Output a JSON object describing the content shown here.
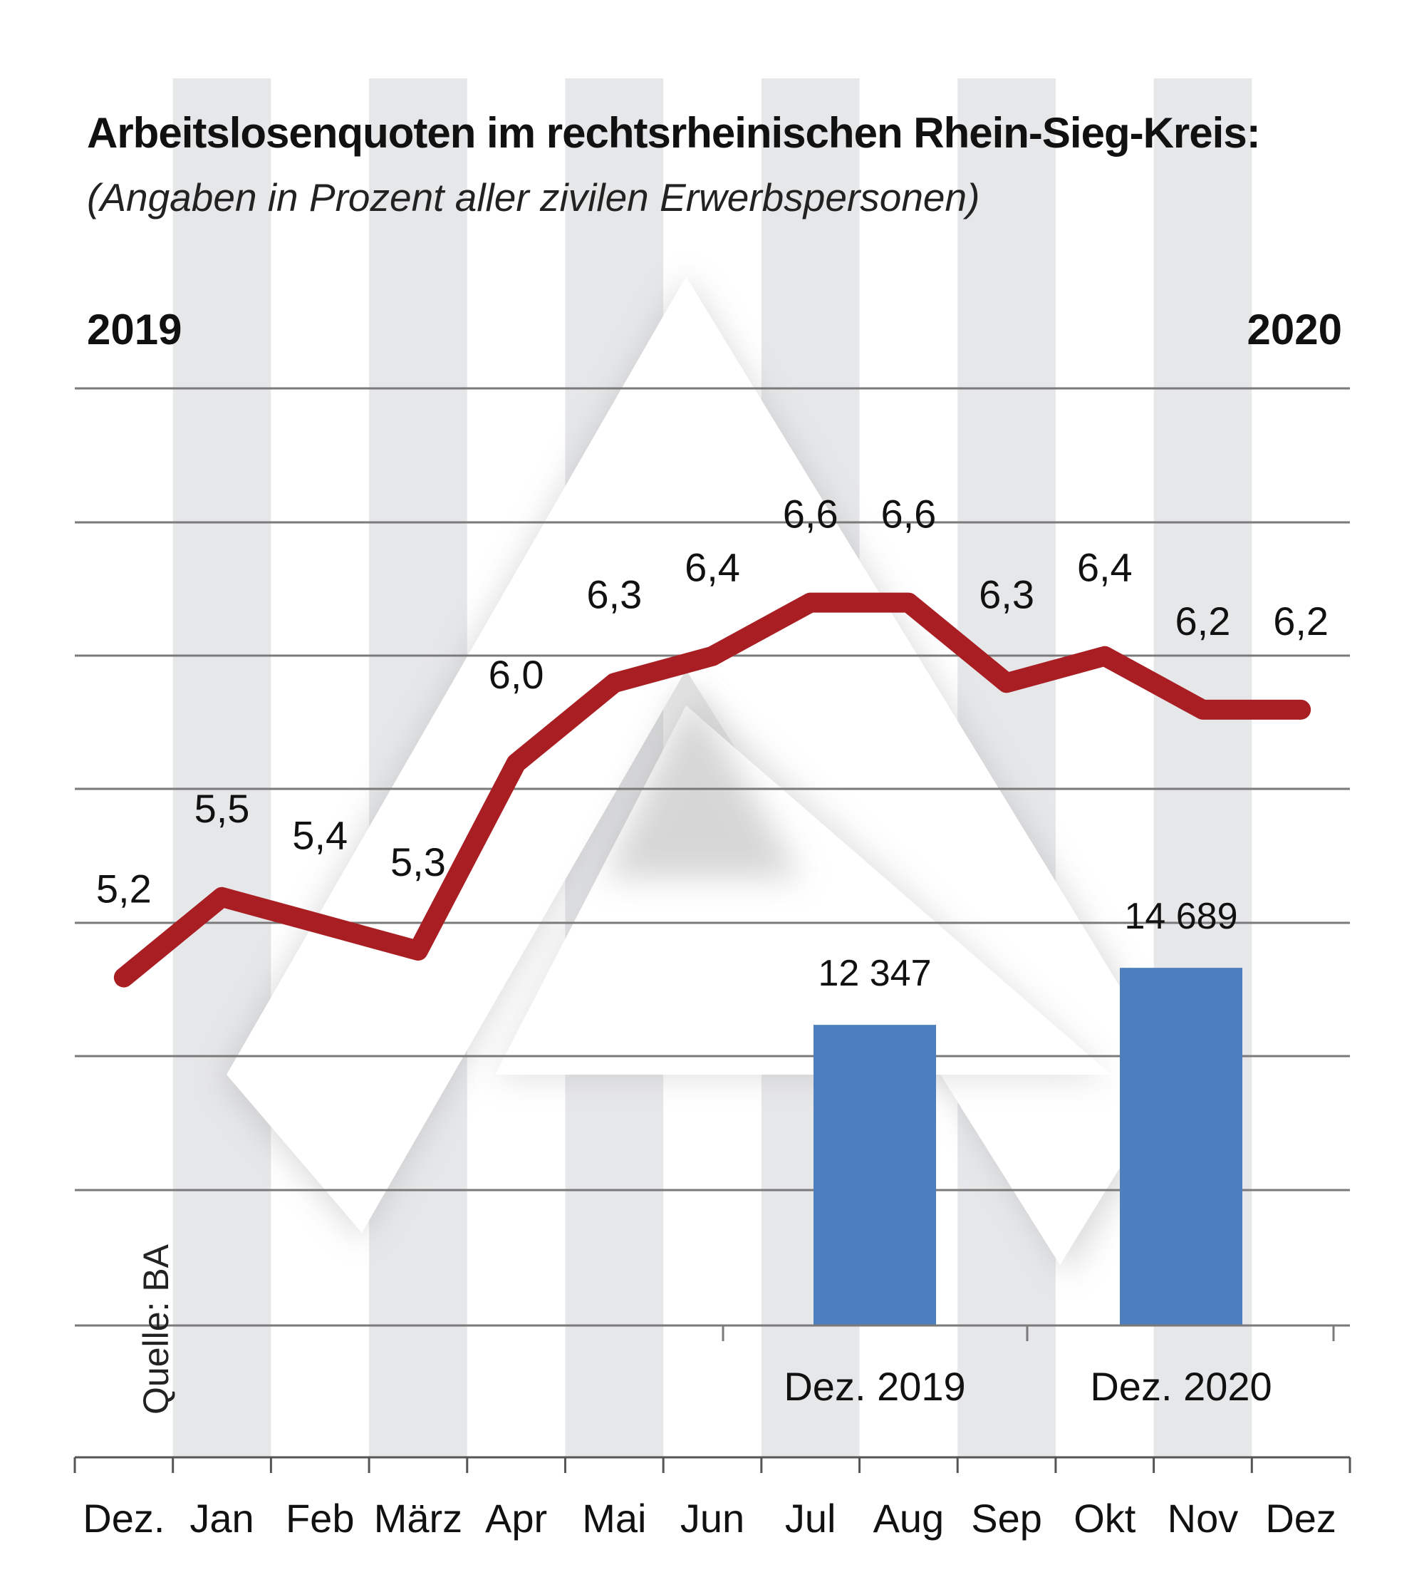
{
  "title": "Arbeitslosenquoten im rechtsrheinischen Rhein-Sieg-Kreis:",
  "subtitle": "(Angaben in Prozent aller zivilen Erwerbspersonen)",
  "year_start": "2019",
  "year_end": "2020",
  "source": "Quelle: BA",
  "colors": {
    "line": "#a91e23",
    "bars": "#4d7fbf",
    "stripes": "#e6e7e9",
    "grid": "#7a7a7a"
  },
  "chart_data": [
    {
      "type": "line",
      "categories": [
        "Dez.",
        "Jan",
        "Feb",
        "März",
        "Apr",
        "Mai",
        "Jun",
        "Jul",
        "Aug",
        "Sep",
        "Okt",
        "Nov",
        "Dez"
      ],
      "values": [
        5.2,
        5.5,
        5.4,
        5.3,
        6.0,
        6.3,
        6.4,
        6.6,
        6.6,
        6.3,
        6.4,
        6.2,
        6.2
      ],
      "labels": [
        "5,2",
        "5,5",
        "5,4",
        "5,3",
        "6,0",
        "6,3",
        "6,4",
        "6,6",
        "6,6",
        "6,3",
        "6,4",
        "6,2",
        "6,2"
      ],
      "ylim": [
        3.9,
        7.4
      ],
      "grid": true,
      "stripes": true
    },
    {
      "type": "bar",
      "categories": [
        "Dez. 2019",
        "Dez. 2020"
      ],
      "values": [
        12347,
        14689
      ],
      "labels": [
        "12 347",
        "14 689"
      ],
      "ylim": [
        0,
        24000
      ]
    }
  ]
}
